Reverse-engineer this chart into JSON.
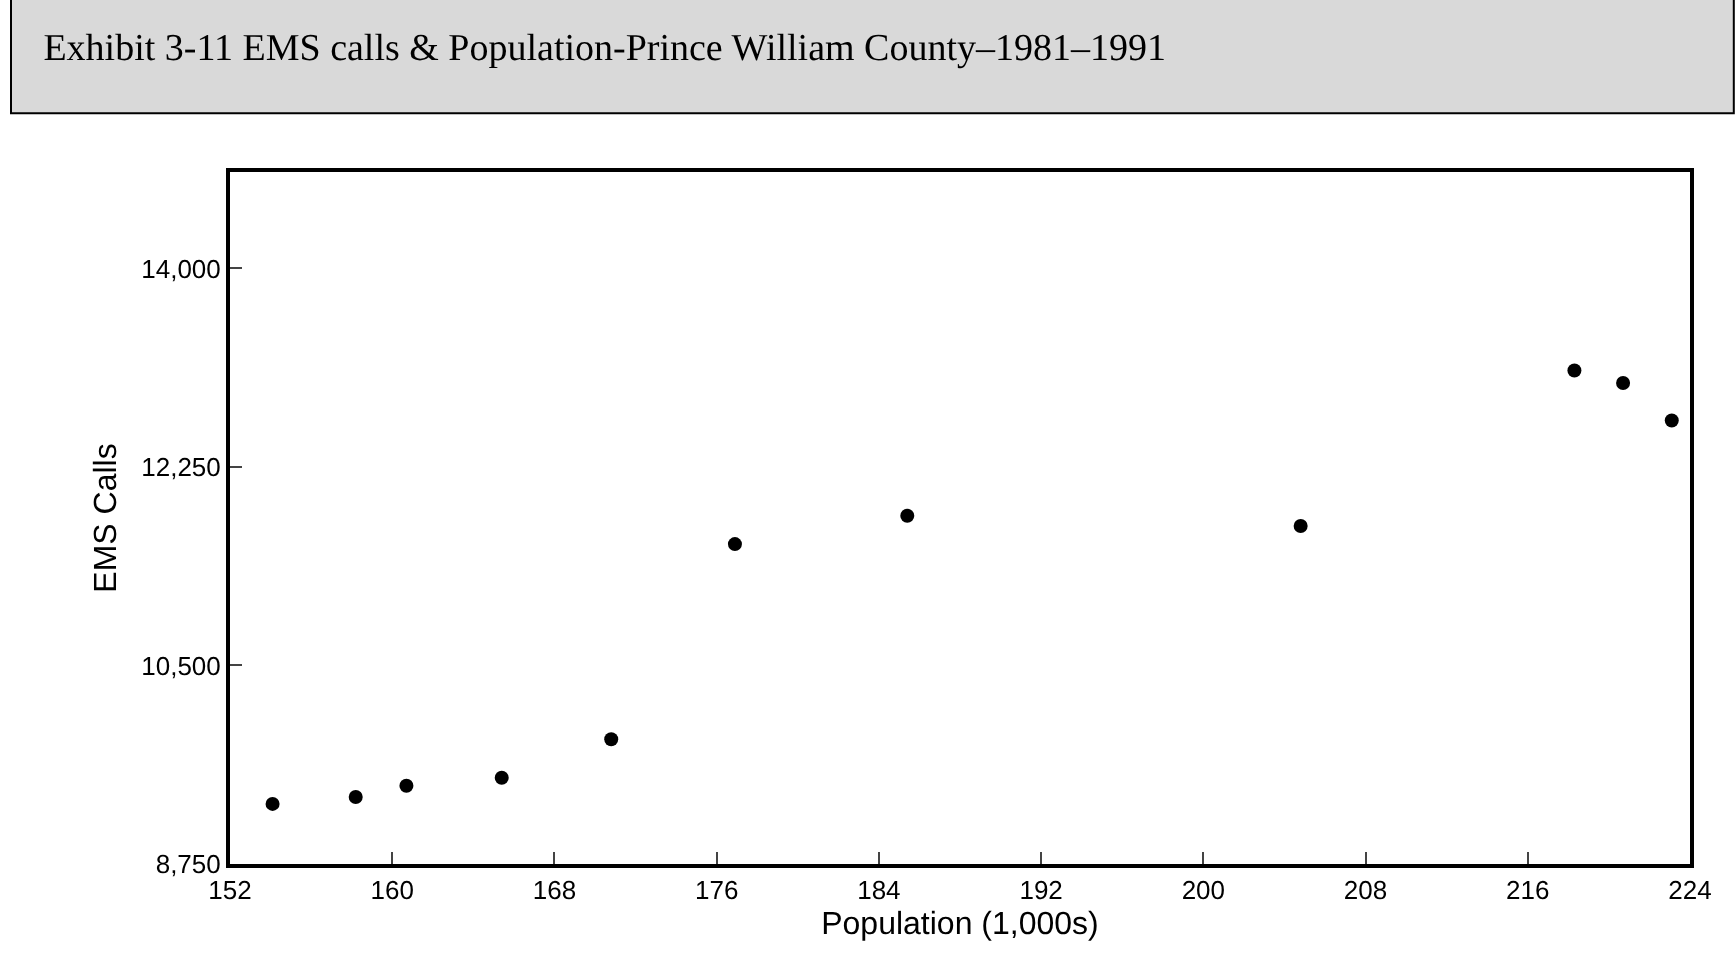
{
  "chart_data": {
    "type": "scatter",
    "title": "Exhibit 3-11 EMS calls & Population-Prince William County–1981–1991",
    "xlabel": "Population (1,000s)",
    "ylabel": "EMS Calls",
    "x": [
      154.1,
      158.2,
      160.7,
      165.4,
      170.8,
      176.9,
      185.4,
      204.8,
      218.3,
      220.7,
      223.1
    ],
    "values": [
      9280,
      9340,
      9440,
      9510,
      9850,
      11570,
      11820,
      11730,
      13100,
      12990,
      12660
    ],
    "color": "#000000",
    "marker": "circle",
    "xlim": [
      152,
      224
    ],
    "xticks": [
      152,
      160,
      168,
      176,
      184,
      192,
      200,
      208,
      216,
      224
    ],
    "ylim": [
      8750,
      14850
    ],
    "yticks": [
      {
        "value": 8750,
        "label": "8,750"
      },
      {
        "value": 10500,
        "label": "10,500"
      },
      {
        "value": 12250,
        "label": "12,250"
      },
      {
        "value": 14000,
        "label": "14,000"
      }
    ]
  }
}
